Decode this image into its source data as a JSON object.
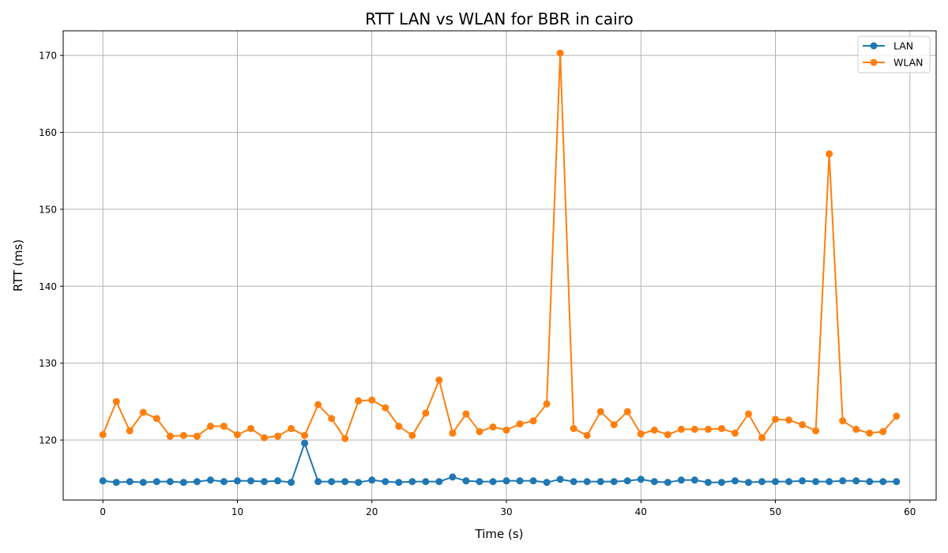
{
  "chart_data": {
    "type": "line",
    "title": "RTT LAN vs WLAN for BBR in cairo",
    "xlabel": "Time (s)",
    "ylabel": "RTT (ms)",
    "xlim": [
      -2.95,
      61.95
    ],
    "ylim": [
      112.2,
      173.2
    ],
    "xticks": [
      0,
      10,
      20,
      30,
      40,
      50,
      60
    ],
    "yticks": [
      120,
      130,
      140,
      150,
      160,
      170
    ],
    "grid": true,
    "legend": "top-right",
    "x": [
      0,
      1,
      2,
      3,
      4,
      5,
      6,
      7,
      8,
      9,
      10,
      11,
      12,
      13,
      14,
      15,
      16,
      17,
      18,
      19,
      20,
      21,
      22,
      23,
      24,
      25,
      26,
      27,
      28,
      29,
      30,
      31,
      32,
      33,
      34,
      35,
      36,
      37,
      38,
      39,
      40,
      41,
      42,
      43,
      44,
      45,
      46,
      47,
      48,
      49,
      50,
      51,
      52,
      53,
      54,
      55,
      56,
      57,
      58,
      59
    ],
    "series": [
      {
        "name": "LAN",
        "color": "#1f77b4",
        "values": [
          114.7,
          114.5,
          114.6,
          114.5,
          114.6,
          114.6,
          114.5,
          114.6,
          114.8,
          114.6,
          114.7,
          114.7,
          114.6,
          114.7,
          114.5,
          119.6,
          114.6,
          114.6,
          114.6,
          114.5,
          114.8,
          114.6,
          114.5,
          114.6,
          114.6,
          114.6,
          115.2,
          114.7,
          114.6,
          114.6,
          114.7,
          114.7,
          114.7,
          114.5,
          114.9,
          114.6,
          114.6,
          114.6,
          114.6,
          114.7,
          114.9,
          114.6,
          114.5,
          114.8,
          114.8,
          114.5,
          114.5,
          114.7,
          114.5,
          114.6,
          114.6,
          114.6,
          114.7,
          114.6,
          114.6,
          114.7,
          114.7,
          114.6,
          114.6,
          114.6
        ]
      },
      {
        "name": "WLAN",
        "color": "#ff7f0e",
        "values": [
          120.7,
          125.0,
          121.2,
          123.6,
          122.8,
          120.5,
          120.6,
          120.5,
          121.8,
          121.8,
          120.7,
          121.5,
          120.3,
          120.5,
          121.5,
          120.6,
          124.6,
          122.8,
          120.2,
          125.1,
          125.2,
          124.2,
          121.8,
          120.6,
          123.5,
          127.8,
          120.9,
          123.4,
          121.1,
          121.7,
          121.3,
          122.1,
          122.5,
          124.7,
          170.3,
          121.5,
          120.6,
          123.7,
          122.0,
          123.7,
          120.8,
          121.3,
          120.7,
          121.4,
          121.4,
          121.4,
          121.5,
          120.9,
          123.4,
          120.3,
          122.7,
          122.6,
          122.0,
          121.2,
          157.2,
          122.5,
          121.4,
          120.9,
          121.1,
          123.1
        ]
      }
    ]
  }
}
